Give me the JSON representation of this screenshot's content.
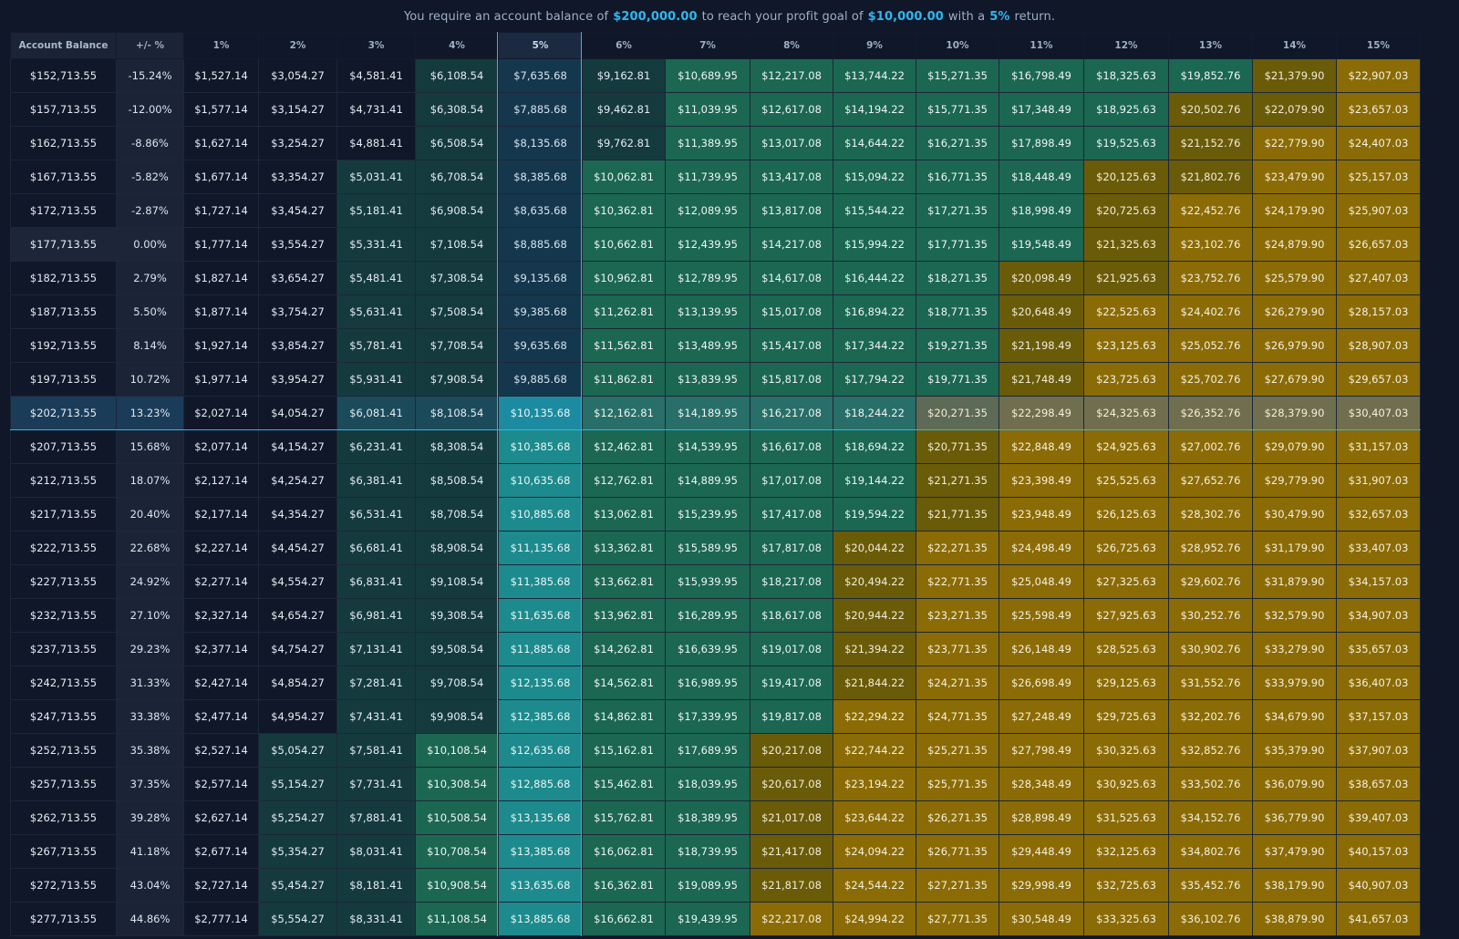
{
  "header": {
    "prefix": "You require an account balance of",
    "balance": "$200,000.00",
    "middle": "to reach your profit goal of",
    "goal": "$10,000.00",
    "with_text": "with a",
    "rate": "5%",
    "suffix": "return."
  },
  "colors": {
    "accent": "#2fb8f0",
    "neutral": "#0f1729",
    "teal_dark": "#143a3e",
    "green": "#1b6751",
    "olive": "#6a5b09",
    "gold": "#8a6b06",
    "goal_column": "#1d8a8d"
  },
  "columns": {
    "account": "Account Balance",
    "change": "+/- %",
    "rates": [
      "1%",
      "2%",
      "3%",
      "4%",
      "5%",
      "6%",
      "7%",
      "8%",
      "9%",
      "10%",
      "11%",
      "12%",
      "13%",
      "14%",
      "15%"
    ]
  },
  "rows": [
    {
      "balance": "$152,713.55",
      "change": "-15.24%",
      "values": [
        "$1,527.14",
        "$3,054.27",
        "$4,581.41",
        "$6,108.54",
        "$7,635.68",
        "$9,162.81",
        "$10,689.95",
        "$12,217.08",
        "$13,744.22",
        "$15,271.35",
        "$16,798.49",
        "$18,325.63",
        "$19,852.76",
        "$21,379.90",
        "$22,907.03"
      ]
    },
    {
      "balance": "$157,713.55",
      "change": "-12.00%",
      "values": [
        "$1,577.14",
        "$3,154.27",
        "$4,731.41",
        "$6,308.54",
        "$7,885.68",
        "$9,462.81",
        "$11,039.95",
        "$12,617.08",
        "$14,194.22",
        "$15,771.35",
        "$17,348.49",
        "$18,925.63",
        "$20,502.76",
        "$22,079.90",
        "$23,657.03"
      ]
    },
    {
      "balance": "$162,713.55",
      "change": "-8.86%",
      "values": [
        "$1,627.14",
        "$3,254.27",
        "$4,881.41",
        "$6,508.54",
        "$8,135.68",
        "$9,762.81",
        "$11,389.95",
        "$13,017.08",
        "$14,644.22",
        "$16,271.35",
        "$17,898.49",
        "$19,525.63",
        "$21,152.76",
        "$22,779.90",
        "$24,407.03"
      ]
    },
    {
      "balance": "$167,713.55",
      "change": "-5.82%",
      "values": [
        "$1,677.14",
        "$3,354.27",
        "$5,031.41",
        "$6,708.54",
        "$8,385.68",
        "$10,062.81",
        "$11,739.95",
        "$13,417.08",
        "$15,094.22",
        "$16,771.35",
        "$18,448.49",
        "$20,125.63",
        "$21,802.76",
        "$23,479.90",
        "$25,157.03"
      ]
    },
    {
      "balance": "$172,713.55",
      "change": "-2.87%",
      "values": [
        "$1,727.14",
        "$3,454.27",
        "$5,181.41",
        "$6,908.54",
        "$8,635.68",
        "$10,362.81",
        "$12,089.95",
        "$13,817.08",
        "$15,544.22",
        "$17,271.35",
        "$18,998.49",
        "$20,725.63",
        "$22,452.76",
        "$24,179.90",
        "$25,907.03"
      ]
    },
    {
      "balance": "$177,713.55",
      "change": "0.00%",
      "values": [
        "$1,777.14",
        "$3,554.27",
        "$5,331.41",
        "$7,108.54",
        "$8,885.68",
        "$10,662.81",
        "$12,439.95",
        "$14,217.08",
        "$15,994.22",
        "$17,771.35",
        "$19,548.49",
        "$21,325.63",
        "$23,102.76",
        "$24,879.90",
        "$26,657.03"
      ]
    },
    {
      "balance": "$182,713.55",
      "change": "2.79%",
      "values": [
        "$1,827.14",
        "$3,654.27",
        "$5,481.41",
        "$7,308.54",
        "$9,135.68",
        "$10,962.81",
        "$12,789.95",
        "$14,617.08",
        "$16,444.22",
        "$18,271.35",
        "$20,098.49",
        "$21,925.63",
        "$23,752.76",
        "$25,579.90",
        "$27,407.03"
      ]
    },
    {
      "balance": "$187,713.55",
      "change": "5.50%",
      "values": [
        "$1,877.14",
        "$3,754.27",
        "$5,631.41",
        "$7,508.54",
        "$9,385.68",
        "$11,262.81",
        "$13,139.95",
        "$15,017.08",
        "$16,894.22",
        "$18,771.35",
        "$20,648.49",
        "$22,525.63",
        "$24,402.76",
        "$26,279.90",
        "$28,157.03"
      ]
    },
    {
      "balance": "$192,713.55",
      "change": "8.14%",
      "values": [
        "$1,927.14",
        "$3,854.27",
        "$5,781.41",
        "$7,708.54",
        "$9,635.68",
        "$11,562.81",
        "$13,489.95",
        "$15,417.08",
        "$17,344.22",
        "$19,271.35",
        "$21,198.49",
        "$23,125.63",
        "$25,052.76",
        "$26,979.90",
        "$28,907.03"
      ]
    },
    {
      "balance": "$197,713.55",
      "change": "10.72%",
      "values": [
        "$1,977.14",
        "$3,954.27",
        "$5,931.41",
        "$7,908.54",
        "$9,885.68",
        "$11,862.81",
        "$13,839.95",
        "$15,817.08",
        "$17,794.22",
        "$19,771.35",
        "$21,748.49",
        "$23,725.63",
        "$25,702.76",
        "$27,679.90",
        "$29,657.03"
      ]
    },
    {
      "balance": "$202,713.55",
      "change": "13.23%",
      "values": [
        "$2,027.14",
        "$4,054.27",
        "$6,081.41",
        "$8,108.54",
        "$10,135.68",
        "$12,162.81",
        "$14,189.95",
        "$16,217.08",
        "$18,244.22",
        "$20,271.35",
        "$22,298.49",
        "$24,325.63",
        "$26,352.76",
        "$28,379.90",
        "$30,407.03"
      ]
    },
    {
      "balance": "$207,713.55",
      "change": "15.68%",
      "values": [
        "$2,077.14",
        "$4,154.27",
        "$6,231.41",
        "$8,308.54",
        "$10,385.68",
        "$12,462.81",
        "$14,539.95",
        "$16,617.08",
        "$18,694.22",
        "$20,771.35",
        "$22,848.49",
        "$24,925.63",
        "$27,002.76",
        "$29,079.90",
        "$31,157.03"
      ]
    },
    {
      "balance": "$212,713.55",
      "change": "18.07%",
      "values": [
        "$2,127.14",
        "$4,254.27",
        "$6,381.41",
        "$8,508.54",
        "$10,635.68",
        "$12,762.81",
        "$14,889.95",
        "$17,017.08",
        "$19,144.22",
        "$21,271.35",
        "$23,398.49",
        "$25,525.63",
        "$27,652.76",
        "$29,779.90",
        "$31,907.03"
      ]
    },
    {
      "balance": "$217,713.55",
      "change": "20.40%",
      "values": [
        "$2,177.14",
        "$4,354.27",
        "$6,531.41",
        "$8,708.54",
        "$10,885.68",
        "$13,062.81",
        "$15,239.95",
        "$17,417.08",
        "$19,594.22",
        "$21,771.35",
        "$23,948.49",
        "$26,125.63",
        "$28,302.76",
        "$30,479.90",
        "$32,657.03"
      ]
    },
    {
      "balance": "$222,713.55",
      "change": "22.68%",
      "values": [
        "$2,227.14",
        "$4,454.27",
        "$6,681.41",
        "$8,908.54",
        "$11,135.68",
        "$13,362.81",
        "$15,589.95",
        "$17,817.08",
        "$20,044.22",
        "$22,271.35",
        "$24,498.49",
        "$26,725.63",
        "$28,952.76",
        "$31,179.90",
        "$33,407.03"
      ]
    },
    {
      "balance": "$227,713.55",
      "change": "24.92%",
      "values": [
        "$2,277.14",
        "$4,554.27",
        "$6,831.41",
        "$9,108.54",
        "$11,385.68",
        "$13,662.81",
        "$15,939.95",
        "$18,217.08",
        "$20,494.22",
        "$22,771.35",
        "$25,048.49",
        "$27,325.63",
        "$29,602.76",
        "$31,879.90",
        "$34,157.03"
      ]
    },
    {
      "balance": "$232,713.55",
      "change": "27.10%",
      "values": [
        "$2,327.14",
        "$4,654.27",
        "$6,981.41",
        "$9,308.54",
        "$11,635.68",
        "$13,962.81",
        "$16,289.95",
        "$18,617.08",
        "$20,944.22",
        "$23,271.35",
        "$25,598.49",
        "$27,925.63",
        "$30,252.76",
        "$32,579.90",
        "$34,907.03"
      ]
    },
    {
      "balance": "$237,713.55",
      "change": "29.23%",
      "values": [
        "$2,377.14",
        "$4,754.27",
        "$7,131.41",
        "$9,508.54",
        "$11,885.68",
        "$14,262.81",
        "$16,639.95",
        "$19,017.08",
        "$21,394.22",
        "$23,771.35",
        "$26,148.49",
        "$28,525.63",
        "$30,902.76",
        "$33,279.90",
        "$35,657.03"
      ]
    },
    {
      "balance": "$242,713.55",
      "change": "31.33%",
      "values": [
        "$2,427.14",
        "$4,854.27",
        "$7,281.41",
        "$9,708.54",
        "$12,135.68",
        "$14,562.81",
        "$16,989.95",
        "$19,417.08",
        "$21,844.22",
        "$24,271.35",
        "$26,698.49",
        "$29,125.63",
        "$31,552.76",
        "$33,979.90",
        "$36,407.03"
      ]
    },
    {
      "balance": "$247,713.55",
      "change": "33.38%",
      "values": [
        "$2,477.14",
        "$4,954.27",
        "$7,431.41",
        "$9,908.54",
        "$12,385.68",
        "$14,862.81",
        "$17,339.95",
        "$19,817.08",
        "$22,294.22",
        "$24,771.35",
        "$27,248.49",
        "$29,725.63",
        "$32,202.76",
        "$34,679.90",
        "$37,157.03"
      ]
    },
    {
      "balance": "$252,713.55",
      "change": "35.38%",
      "values": [
        "$2,527.14",
        "$5,054.27",
        "$7,581.41",
        "$10,108.54",
        "$12,635.68",
        "$15,162.81",
        "$17,689.95",
        "$20,217.08",
        "$22,744.22",
        "$25,271.35",
        "$27,798.49",
        "$30,325.63",
        "$32,852.76",
        "$35,379.90",
        "$37,907.03"
      ]
    },
    {
      "balance": "$257,713.55",
      "change": "37.35%",
      "values": [
        "$2,577.14",
        "$5,154.27",
        "$7,731.41",
        "$10,308.54",
        "$12,885.68",
        "$15,462.81",
        "$18,039.95",
        "$20,617.08",
        "$23,194.22",
        "$25,771.35",
        "$28,348.49",
        "$30,925.63",
        "$33,502.76",
        "$36,079.90",
        "$38,657.03"
      ]
    },
    {
      "balance": "$262,713.55",
      "change": "39.28%",
      "values": [
        "$2,627.14",
        "$5,254.27",
        "$7,881.41",
        "$10,508.54",
        "$13,135.68",
        "$15,762.81",
        "$18,389.95",
        "$21,017.08",
        "$23,644.22",
        "$26,271.35",
        "$28,898.49",
        "$31,525.63",
        "$34,152.76",
        "$36,779.90",
        "$39,407.03"
      ]
    },
    {
      "balance": "$267,713.55",
      "change": "41.18%",
      "values": [
        "$2,677.14",
        "$5,354.27",
        "$8,031.41",
        "$10,708.54",
        "$13,385.68",
        "$16,062.81",
        "$18,739.95",
        "$21,417.08",
        "$24,094.22",
        "$26,771.35",
        "$29,448.49",
        "$32,125.63",
        "$34,802.76",
        "$37,479.90",
        "$40,157.03"
      ]
    },
    {
      "balance": "$272,713.55",
      "change": "43.04%",
      "values": [
        "$2,727.14",
        "$5,454.27",
        "$8,181.41",
        "$10,908.54",
        "$13,635.68",
        "$16,362.81",
        "$19,089.95",
        "$21,817.08",
        "$24,544.22",
        "$27,271.35",
        "$29,998.49",
        "$32,725.63",
        "$35,452.76",
        "$38,179.90",
        "$40,907.03"
      ]
    },
    {
      "balance": "$277,713.55",
      "change": "44.86%",
      "values": [
        "$2,777.14",
        "$5,554.27",
        "$8,331.41",
        "$11,108.54",
        "$13,885.68",
        "$16,662.81",
        "$19,439.95",
        "$22,217.08",
        "$24,994.22",
        "$27,771.35",
        "$30,548.49",
        "$33,325.63",
        "$36,102.76",
        "$38,879.90",
        "$41,657.03"
      ]
    }
  ]
}
